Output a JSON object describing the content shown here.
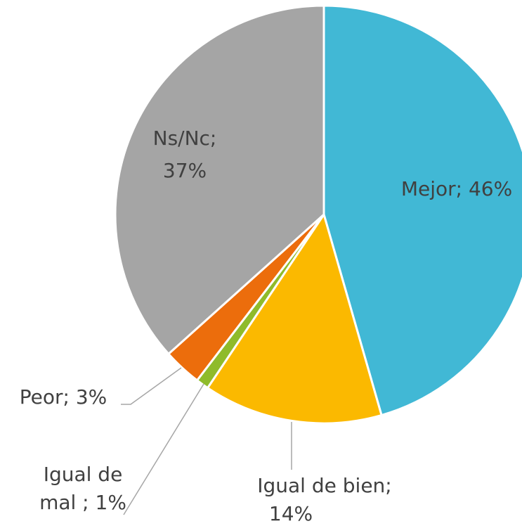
{
  "chart_data": {
    "type": "pie",
    "values": [
      46,
      14,
      1,
      3,
      37
    ],
    "value_labels": [
      "Mejor; 46%",
      "Igual de bien; 14%",
      "Igual de mal ; 1%",
      "Peor; 3%",
      "Ns/Nc; 37%"
    ],
    "colors": [
      "#41b8d5",
      "#fbb900",
      "#8fbb2b",
      "#ec6d0c",
      "#a5a5a5"
    ]
  }
}
